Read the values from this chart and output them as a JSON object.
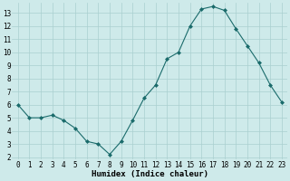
{
  "x": [
    0,
    1,
    2,
    3,
    4,
    5,
    6,
    7,
    8,
    9,
    10,
    11,
    12,
    13,
    14,
    15,
    16,
    17,
    18,
    19,
    20,
    21,
    22,
    23
  ],
  "y": [
    6.0,
    5.0,
    5.0,
    5.2,
    4.8,
    4.2,
    3.2,
    3.0,
    2.2,
    3.2,
    4.8,
    6.5,
    7.5,
    9.5,
    10.0,
    12.0,
    13.3,
    13.5,
    13.2,
    11.8,
    10.5,
    9.2,
    7.5,
    6.2
  ],
  "xlabel": "Humidex (Indice chaleur)",
  "bg_color": "#ceeaea",
  "grid_color": "#aacfcf",
  "line_color": "#1a6b6b",
  "marker_color": "#1a6b6b",
  "xlim": [
    -0.5,
    23.5
  ],
  "ylim": [
    1.8,
    13.8
  ],
  "yticks": [
    2,
    3,
    4,
    5,
    6,
    7,
    8,
    9,
    10,
    11,
    12,
    13
  ],
  "xticks": [
    0,
    1,
    2,
    3,
    4,
    5,
    6,
    7,
    8,
    9,
    10,
    11,
    12,
    13,
    14,
    15,
    16,
    17,
    18,
    19,
    20,
    21,
    22,
    23
  ],
  "tick_fontsize": 5.5,
  "xlabel_fontsize": 6.5,
  "linewidth": 0.8,
  "markersize": 2.0
}
